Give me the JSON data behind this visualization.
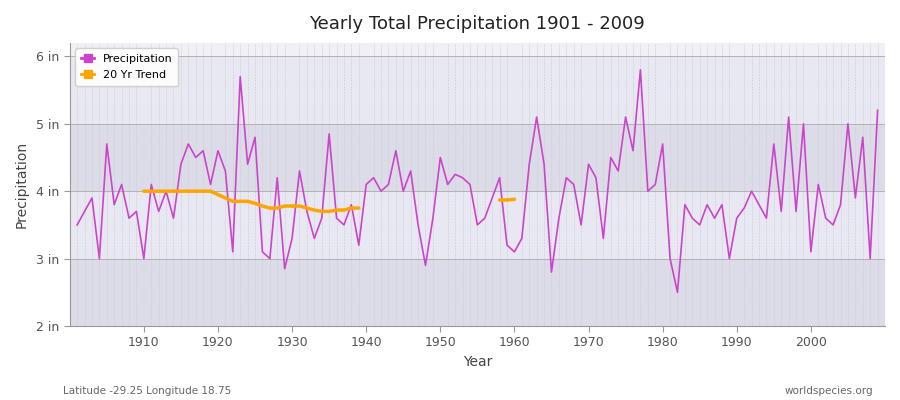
{
  "title": "Yearly Total Precipitation 1901 - 2009",
  "xlabel": "Year",
  "ylabel": "Precipitation",
  "bottom_left_label": "Latitude -29.25 Longitude 18.75",
  "bottom_right_label": "worldspecies.org",
  "line_color": "#CC44CC",
  "trend_color": "#FFA500",
  "background_color": "#FFFFFF",
  "plot_bg_color": "#F0F0F5",
  "years": [
    1901,
    1902,
    1903,
    1904,
    1905,
    1906,
    1907,
    1908,
    1909,
    1910,
    1911,
    1912,
    1913,
    1914,
    1915,
    1916,
    1917,
    1918,
    1919,
    1920,
    1921,
    1922,
    1923,
    1924,
    1925,
    1926,
    1927,
    1928,
    1929,
    1930,
    1931,
    1932,
    1933,
    1934,
    1935,
    1936,
    1937,
    1938,
    1939,
    1940,
    1941,
    1942,
    1943,
    1944,
    1945,
    1946,
    1947,
    1948,
    1949,
    1950,
    1951,
    1952,
    1953,
    1954,
    1955,
    1956,
    1957,
    1958,
    1959,
    1960,
    1961,
    1962,
    1963,
    1964,
    1965,
    1966,
    1967,
    1968,
    1969,
    1970,
    1971,
    1972,
    1973,
    1974,
    1975,
    1976,
    1977,
    1978,
    1979,
    1980,
    1981,
    1982,
    1983,
    1984,
    1985,
    1986,
    1987,
    1988,
    1989,
    1990,
    1991,
    1992,
    1993,
    1994,
    1995,
    1996,
    1997,
    1998,
    1999,
    2000,
    2001,
    2002,
    2003,
    2004,
    2005,
    2006,
    2007,
    2008,
    2009
  ],
  "precip": [
    3.5,
    3.7,
    3.9,
    3.0,
    4.7,
    3.8,
    4.1,
    3.6,
    3.7,
    3.0,
    4.1,
    3.7,
    4.0,
    3.6,
    4.4,
    4.7,
    4.5,
    4.6,
    4.1,
    4.6,
    4.3,
    3.1,
    5.7,
    4.4,
    4.8,
    3.1,
    3.0,
    4.2,
    2.85,
    3.3,
    4.3,
    3.7,
    3.3,
    3.6,
    4.85,
    3.6,
    3.5,
    3.8,
    3.2,
    4.1,
    4.2,
    4.0,
    4.1,
    4.6,
    4.0,
    4.3,
    3.5,
    2.9,
    3.6,
    4.5,
    4.1,
    4.25,
    4.2,
    4.1,
    3.5,
    3.6,
    3.9,
    4.2,
    3.2,
    3.1,
    3.3,
    4.4,
    5.1,
    4.4,
    2.8,
    3.6,
    4.2,
    4.1,
    3.5,
    4.4,
    4.2,
    3.3,
    4.5,
    4.3,
    5.1,
    4.6,
    5.8,
    4.0,
    4.1,
    4.7,
    3.0,
    2.5,
    3.8,
    3.6,
    3.5,
    3.8,
    3.6,
    3.8,
    3.0,
    3.6,
    3.75,
    4.0,
    3.8,
    3.6,
    4.7,
    3.7,
    5.1,
    3.7,
    5.0,
    3.1,
    4.1,
    3.6,
    3.5,
    3.8,
    5.0,
    3.9,
    4.8,
    3.0,
    5.2
  ],
  "trend_segments": [
    {
      "years": [
        1910,
        1911,
        1912,
        1913,
        1914,
        1915,
        1916,
        1917,
        1918,
        1919,
        1920
      ],
      "values": [
        4.0,
        4.0,
        4.0,
        4.0,
        4.0,
        4.0,
        4.0,
        4.0,
        4.0,
        4.0,
        3.95
      ]
    },
    {
      "years": [
        1920,
        1921,
        1922,
        1923,
        1924,
        1925,
        1926,
        1927,
        1928,
        1929,
        1930
      ],
      "values": [
        3.95,
        3.9,
        3.85,
        3.85,
        3.85,
        3.82,
        3.78,
        3.75,
        3.75,
        3.78,
        3.78
      ]
    },
    {
      "years": [
        1930,
        1931,
        1932,
        1933,
        1934,
        1935,
        1936,
        1937,
        1938,
        1939
      ],
      "values": [
        3.78,
        3.78,
        3.75,
        3.72,
        3.7,
        3.7,
        3.72,
        3.72,
        3.75,
        3.75
      ]
    },
    {
      "years": [
        1958,
        1959,
        1960
      ],
      "values": [
        3.87,
        3.87,
        3.88
      ]
    }
  ],
  "ylim": [
    2.0,
    6.2
  ],
  "yticks": [
    2,
    3,
    4,
    5,
    6
  ],
  "ytick_labels": [
    "2 in",
    "3 in",
    "4 in",
    "5 in",
    "6 in"
  ],
  "xlim": [
    1901,
    2009
  ]
}
